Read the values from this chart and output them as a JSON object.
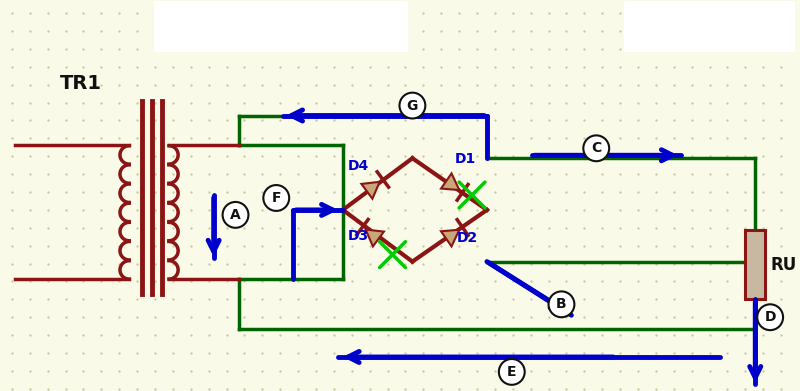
{
  "bg_color": "#FAFAE8",
  "dot_color": "#C8C8A0",
  "dark_red": "#8B1414",
  "green": "#006400",
  "blue": "#0000CC",
  "cyan_green": "#00CC00",
  "black": "#111111",
  "white": "#FFFFFF",
  "resistor_fill": "#C8B8A0",
  "fig_w": 8.0,
  "fig_h": 3.91,
  "dpi": 100,
  "TR1": "TR1",
  "RU": "RU",
  "A": "A",
  "B": "B",
  "C": "C",
  "D": "D",
  "E": "E",
  "F": "F",
  "G": "G",
  "D1": "D1",
  "D2": "D2",
  "D3": "D3",
  "D4": "D4"
}
